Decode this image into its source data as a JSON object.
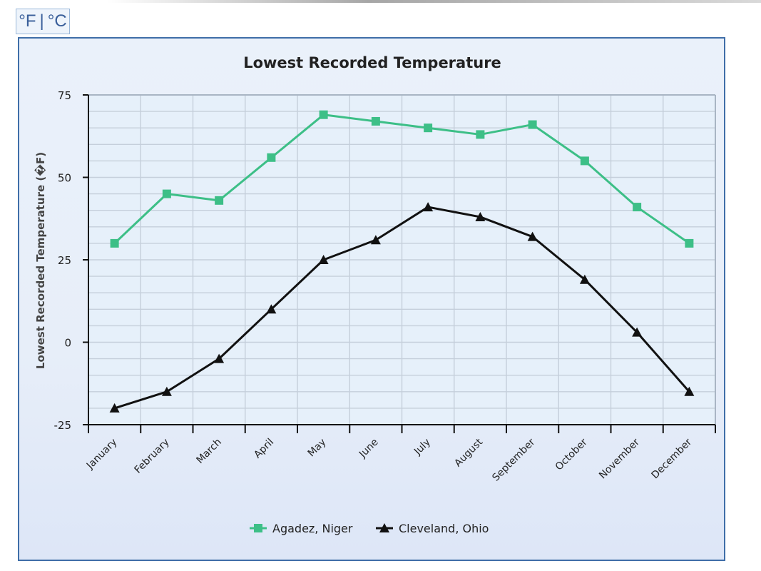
{
  "unit_toggle": {
    "fahrenheit": "°F",
    "separator": "|",
    "celsius": "°C"
  },
  "chart_data": {
    "type": "line",
    "title": "Lowest Recorded Temperature",
    "xlabel": "",
    "ylabel": "Lowest Recorded Temperature (�F)",
    "categories": [
      "January",
      "February",
      "March",
      "April",
      "May",
      "June",
      "July",
      "August",
      "September",
      "October",
      "November",
      "December"
    ],
    "ylim": [
      -25,
      75
    ],
    "yticks": [
      "-25",
      "0",
      "25",
      "50",
      "75"
    ],
    "grid": true,
    "legend_position": "bottom",
    "series": [
      {
        "name": "Agadez, Niger",
        "marker": "square",
        "color": "#3dbf87",
        "values": [
          30,
          45,
          43,
          56,
          69,
          67,
          65,
          63,
          66,
          55,
          41,
          30
        ]
      },
      {
        "name": "Cleveland, Ohio",
        "marker": "triangle",
        "color": "#111111",
        "values": [
          -20,
          -15,
          -5,
          10,
          25,
          31,
          41,
          38,
          32,
          19,
          3,
          -15
        ]
      }
    ]
  }
}
